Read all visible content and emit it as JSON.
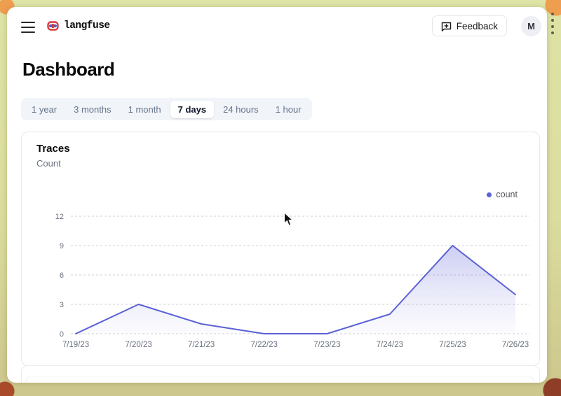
{
  "header": {
    "brand": "langfuse",
    "feedback_label": "Feedback",
    "avatar_initial": "M"
  },
  "page": {
    "title": "Dashboard"
  },
  "tabs": [
    {
      "label": "1 year",
      "active": false
    },
    {
      "label": "3 months",
      "active": false
    },
    {
      "label": "1 month",
      "active": false
    },
    {
      "label": "7 days",
      "active": true
    },
    {
      "label": "24 hours",
      "active": false
    },
    {
      "label": "1 hour",
      "active": false
    }
  ],
  "card": {
    "title": "Traces",
    "subtitle": "Count"
  },
  "legend": {
    "label": "count"
  },
  "icons": [
    "menu-icon",
    "knot-logo-icon",
    "feedback-message-plus-icon",
    "legend-dot",
    "mouse-cursor"
  ],
  "colors": {
    "accent_indigo": "#5b61d6",
    "area_fill": "#6366f1",
    "grid_line": "#cdd1d8",
    "axis_text": "#6b7280",
    "tab_bar_bg": "#f1f4f9",
    "frame_khaki": "#dadd9d",
    "frame_orange": "#ef9d4e",
    "frame_maroon": "#8e3d26"
  },
  "chart_data": {
    "type": "area",
    "title": "Traces",
    "ylabel": "Count",
    "x": [
      "7/19/23",
      "7/20/23",
      "7/21/23",
      "7/22/23",
      "7/23/23",
      "7/24/23",
      "7/25/23",
      "7/26/23"
    ],
    "series": [
      {
        "name": "count",
        "values": [
          0,
          3,
          1,
          0,
          0,
          2,
          9,
          4
        ]
      }
    ],
    "ylim": [
      0,
      12
    ],
    "yticks": [
      0,
      3,
      6,
      9,
      12
    ],
    "grid": "dashed-horizontal",
    "legend_position": "top-right",
    "line_color": "#5b61d6"
  }
}
